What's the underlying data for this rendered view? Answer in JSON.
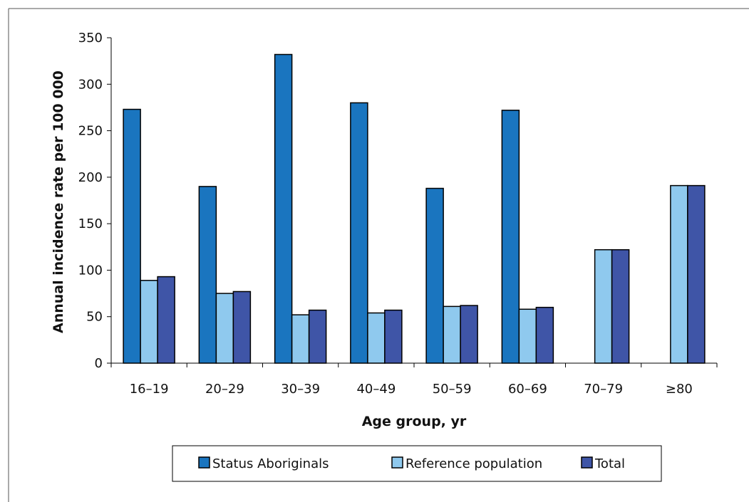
{
  "chart_data": {
    "type": "bar",
    "title": "",
    "xlabel": "Age group, yr",
    "ylabel": "Annual incidence rate per 100 000",
    "categories": [
      "16–19",
      "20–29",
      "30–39",
      "40–49",
      "50–59",
      "60–69",
      "70–79",
      "≥80"
    ],
    "series": [
      {
        "name": "Status Aboriginals",
        "color": "#1a75bf",
        "values": [
          273,
          190,
          332,
          280,
          188,
          272,
          null,
          null
        ]
      },
      {
        "name": "Reference population",
        "color": "#8fc9ee",
        "values": [
          89,
          75,
          52,
          54,
          61,
          58,
          122,
          191
        ]
      },
      {
        "name": "Total",
        "color": "#3f55a7",
        "values": [
          93,
          77,
          57,
          57,
          62,
          60,
          122,
          191
        ]
      }
    ],
    "ylim": [
      0,
      350
    ],
    "yticks": [
      0,
      50,
      100,
      150,
      200,
      250,
      300,
      350
    ],
    "grid": false,
    "legend_position": "bottom"
  }
}
